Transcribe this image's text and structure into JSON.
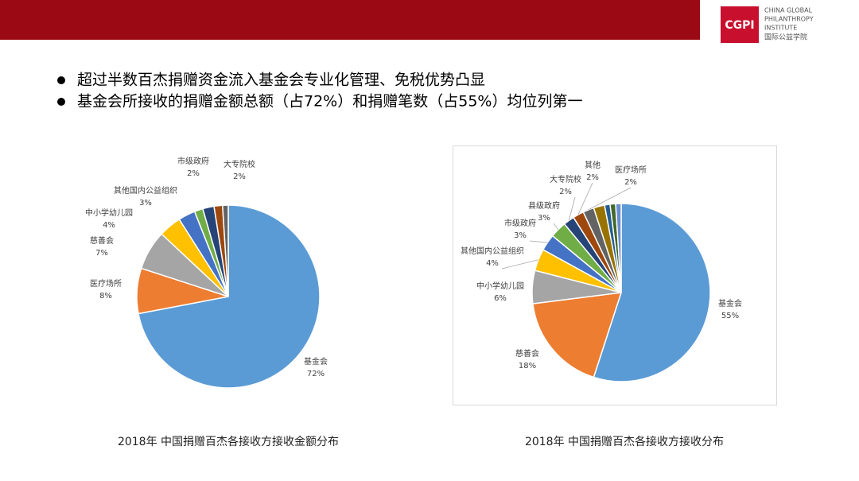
{
  "header": {
    "logo_mark": "CGPI",
    "logo_lines": [
      "CHINA GLOBAL",
      "PHILANTHROPY",
      "INSTITUTE",
      "国际公益学院"
    ]
  },
  "bullets": [
    "超过半数百杰捐赠资金流入基金会专业化管理、免税优势凸显",
    "基金会所接收的捐赠金额总额（占72%）和捐赠笔数（占55%）均位列第一"
  ],
  "chart_data": [
    {
      "type": "pie",
      "title": "2018年 中国捐赠百杰各接收方接收金额分布",
      "categories": [
        "基金会",
        "医疗场所",
        "慈善会",
        "中小学幼儿园",
        "其他国内公益组织",
        null,
        "市级政府",
        "大专院校",
        null
      ],
      "values": [
        72,
        8,
        7,
        4,
        3,
        1.5,
        2,
        1.5,
        1
      ],
      "value_labels": [
        "72%",
        "8%",
        "7%",
        "4%",
        "3%",
        null,
        "2%",
        "2%",
        null
      ],
      "colors": [
        "#5b9bd5",
        "#ed7d31",
        "#a5a5a5",
        "#ffc000",
        "#4472c4",
        "#70ad47",
        "#264478",
        "#9e480e",
        "#636363"
      ]
    },
    {
      "type": "pie",
      "title": "2018年 中国捐赠百杰各接收方接收分布",
      "categories": [
        "基金会",
        "慈善会",
        "中小学幼儿园",
        "其他国内公益组织",
        "市级政府",
        "县级政府",
        "大专院校",
        "其他",
        "医疗场所",
        null,
        null,
        null,
        null
      ],
      "values": [
        55,
        18,
        6,
        4,
        3,
        3,
        2,
        2,
        2,
        2,
        1,
        1,
        1
      ],
      "value_labels": [
        "55%",
        "18%",
        "6%",
        "4%",
        "3%",
        "3%",
        "2%",
        "2%",
        "2%",
        null,
        null,
        null,
        null
      ],
      "colors": [
        "#5b9bd5",
        "#ed7d31",
        "#a5a5a5",
        "#ffc000",
        "#4472c4",
        "#70ad47",
        "#264478",
        "#9e480e",
        "#636363",
        "#997300",
        "#255e91",
        "#43682b",
        "#698ed0"
      ]
    }
  ]
}
